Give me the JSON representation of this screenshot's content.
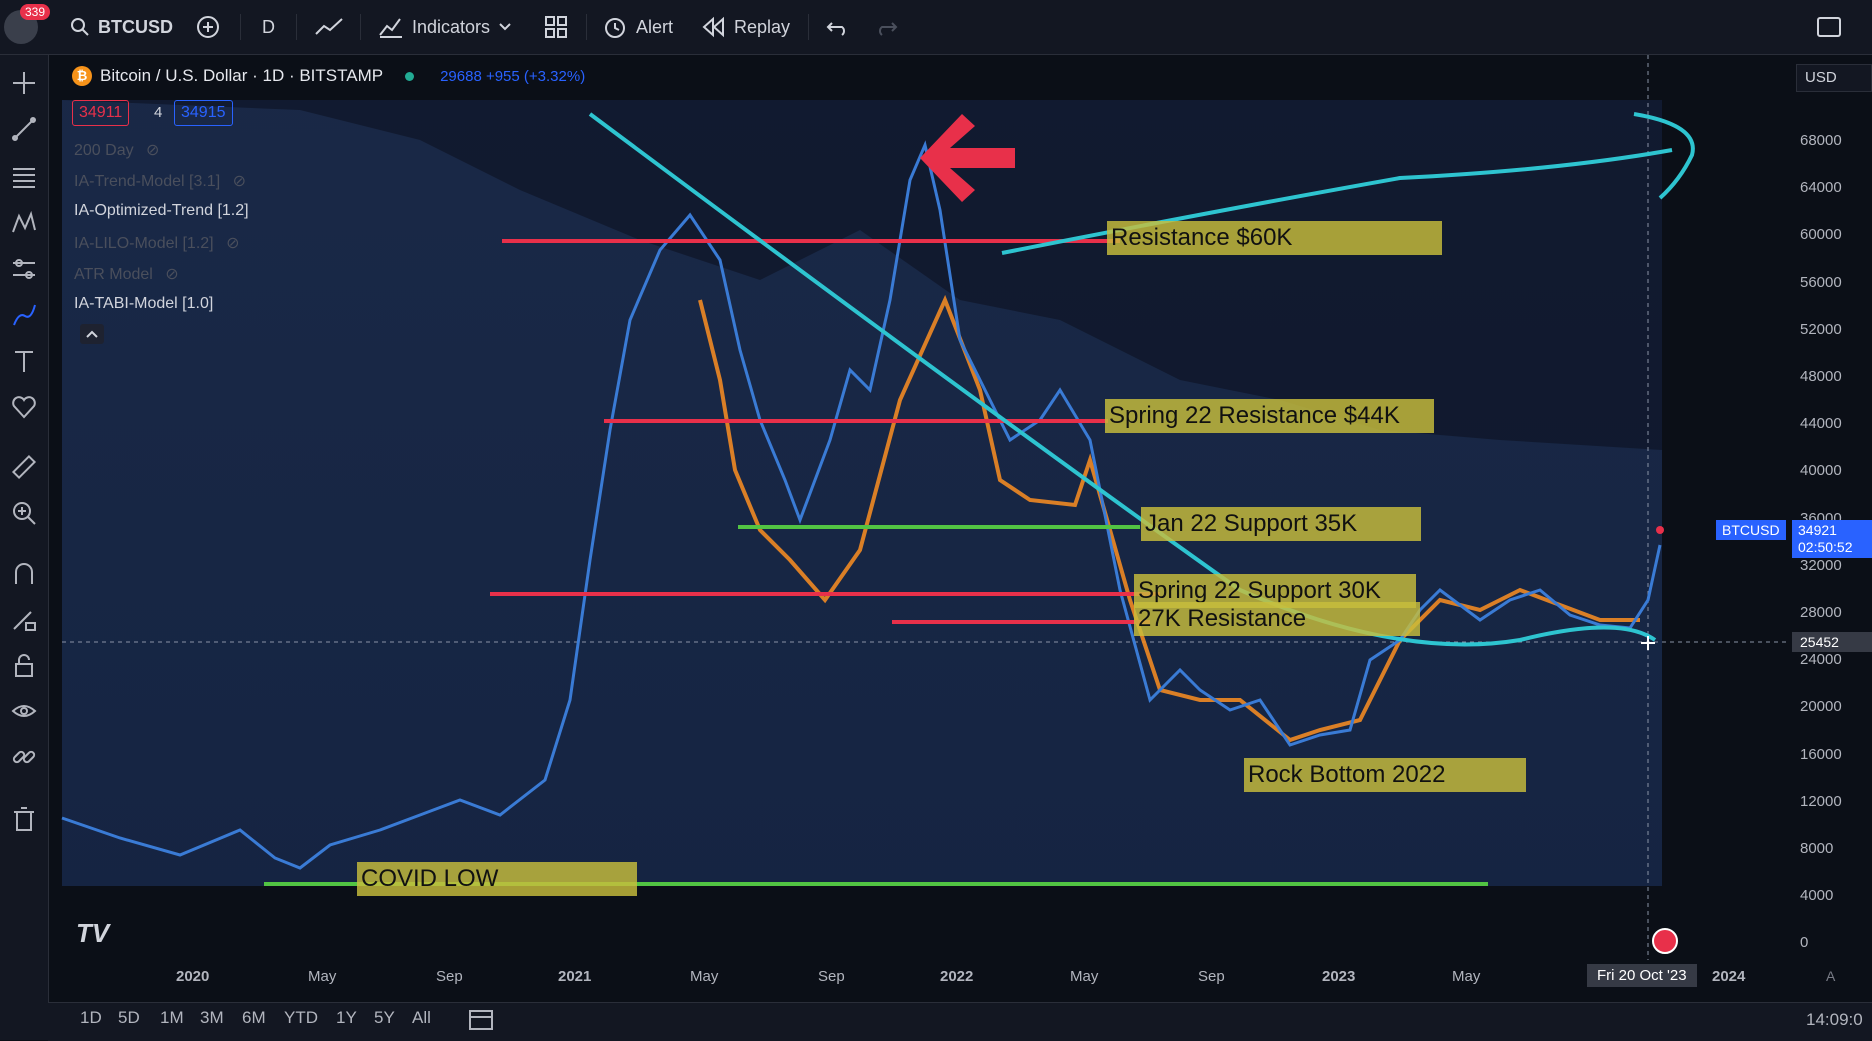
{
  "topbar": {
    "notif_count": "339",
    "symbol": "BTCUSD",
    "interval": "D",
    "indicators": "Indicators",
    "alert": "Alert",
    "replay": "Replay"
  },
  "legend": {
    "title": "Bitcoin / U.S. Dollar · 1D · BITSTAMP",
    "change": "29688 +955 (+3.32%)",
    "sell": "34911",
    "spread": "4",
    "buy": "34915",
    "currency": "USD"
  },
  "indicators": [
    {
      "label": "200 Day",
      "hidden": true
    },
    {
      "label": "IA-Trend-Model [3.1]",
      "hidden": true
    },
    {
      "label": "IA-Optimized-Trend [1.2]",
      "hidden": false
    },
    {
      "label": "IA-LILO-Model [1.2]",
      "hidden": true
    },
    {
      "label": "ATR Model",
      "hidden": true
    },
    {
      "label": "IA-TABI-Model [1.0]",
      "hidden": false
    }
  ],
  "price_axis": [
    "68000",
    "64000",
    "60000",
    "56000",
    "52000",
    "48000",
    "44000",
    "40000",
    "36000",
    "32000",
    "28000",
    "24000",
    "20000",
    "16000",
    "12000",
    "8000",
    "4000",
    "0"
  ],
  "price_tag": {
    "symbol": "BTCUSD",
    "price": "34921",
    "countdown": "02:50:52"
  },
  "crosshair_price": "25452",
  "time_axis": [
    {
      "label": "2020",
      "bold": true
    },
    {
      "label": "May",
      "bold": false
    },
    {
      "label": "Sep",
      "bold": false
    },
    {
      "label": "2021",
      "bold": true
    },
    {
      "label": "May",
      "bold": false
    },
    {
      "label": "Sep",
      "bold": false
    },
    {
      "label": "2022",
      "bold": true
    },
    {
      "label": "May",
      "bold": false
    },
    {
      "label": "Sep",
      "bold": false
    },
    {
      "label": "2023",
      "bold": true
    },
    {
      "label": "May",
      "bold": false
    }
  ],
  "crosshair_date": "Fri 20 Oct '23",
  "axis_end": "2024",
  "axis_scale_btn": "A",
  "annotations": [
    "Resistance $60K",
    "Spring 22 Resistance $44K",
    "Jan 22 Support 35K",
    "Spring 22 Support 30K",
    "27K Resistance",
    "Rock Bottom 2022",
    "COVID LOW"
  ],
  "ranges": [
    "1D",
    "5D",
    "1M",
    "3M",
    "6M",
    "YTD",
    "1Y",
    "5Y",
    "All"
  ],
  "clock": "14:09:0",
  "logo": "TV",
  "colors": {
    "accent": "#2962ff",
    "resistance": "#e8304a",
    "support": "#52c443",
    "trend": "#2ec4d0",
    "label_bg": "#c8be3c",
    "price_line": "#3a7bd5",
    "down_move": "#f08a24"
  }
}
